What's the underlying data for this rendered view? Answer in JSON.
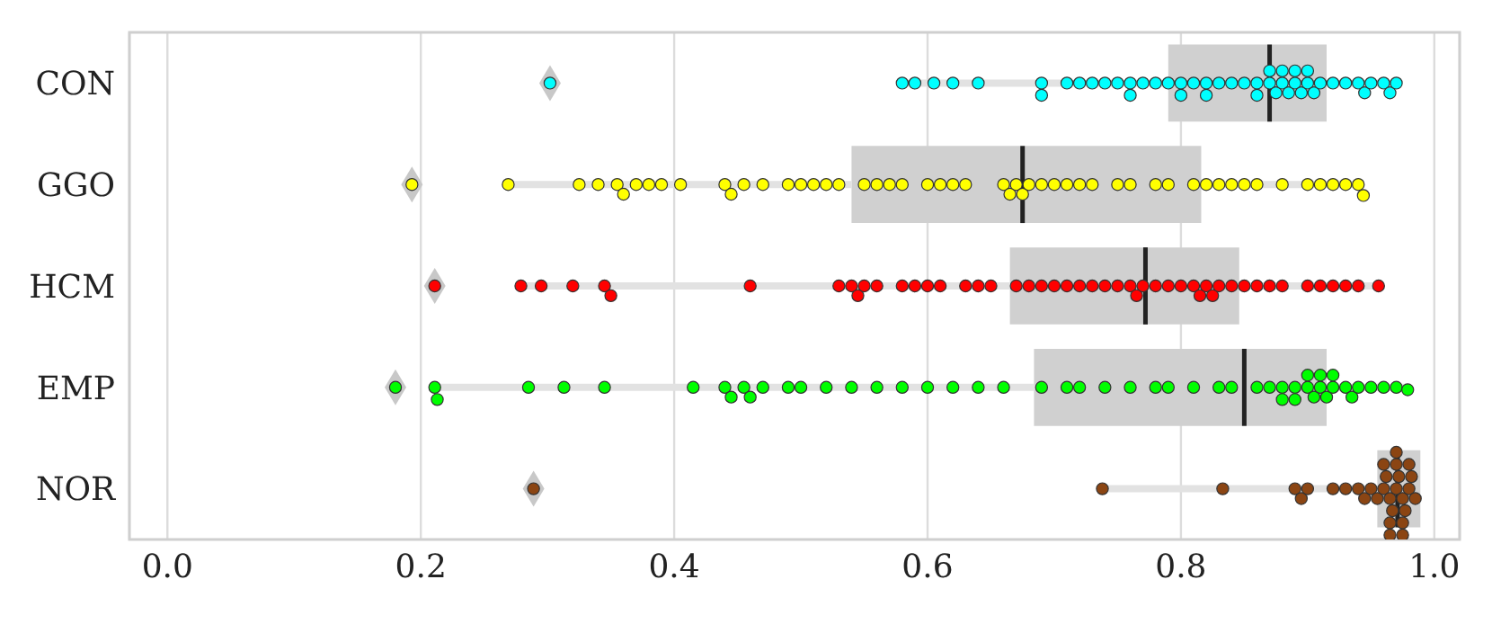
{
  "chart_data": {
    "type": "box",
    "orientation": "horizontal",
    "categories": [
      "CON",
      "GGO",
      "HCM",
      "EMP",
      "NOR"
    ],
    "xlim": [
      -0.03,
      1.02
    ],
    "xticks": [
      {
        "value": 0,
        "label": "0.0"
      },
      {
        "value": 0.2,
        "label": "0.2"
      },
      {
        "value": 0.4,
        "label": "0.4"
      },
      {
        "value": 0.6,
        "label": "0.6"
      },
      {
        "value": 0.8,
        "label": "0.8"
      },
      {
        "value": 1,
        "label": "1.0"
      }
    ],
    "grid": "x",
    "legend": false,
    "series": [
      {
        "type": "box",
        "color": "#d0d0d0",
        "boxes": [
          {
            "low": 0.58,
            "q1": 0.79,
            "median": 0.87,
            "q3": 0.915,
            "high": 0.972,
            "outliers": [
              0.302
            ]
          },
          {
            "low": 0.269,
            "q1": 0.54,
            "median": 0.675,
            "q3": 0.816,
            "high": 0.944,
            "outliers": [
              0.193
            ]
          },
          {
            "low": 0.279,
            "q1": 0.665,
            "median": 0.772,
            "q3": 0.846,
            "high": 0.956,
            "outliers": [
              0.211
            ]
          },
          {
            "low": 0.211,
            "q1": 0.684,
            "median": 0.85,
            "q3": 0.915,
            "high": 0.979,
            "outliers": [
              0.18
            ]
          },
          {
            "low": 0.738,
            "q1": 0.955,
            "median": 0.971,
            "q3": 0.989,
            "high": 0.989,
            "outliers": [
              0.289
            ]
          }
        ]
      },
      {
        "type": "scatter",
        "color": "#00ffff",
        "x": [
          "CON",
          "CON",
          "CON",
          "CON",
          "CON",
          "CON",
          "CON",
          "CON",
          "CON",
          "CON",
          "CON",
          "CON",
          "CON",
          "CON",
          "CON",
          "CON",
          "CON",
          "CON",
          "CON",
          "CON",
          "CON",
          "CON",
          "CON",
          "CON",
          "CON",
          "CON",
          "CON",
          "CON",
          "CON",
          "CON",
          "CON",
          "CON",
          "CON",
          "CON",
          "CON",
          "CON",
          "CON",
          "CON",
          "CON",
          "CON",
          "CON",
          "CON",
          "CON",
          "CON",
          "CON",
          "CON",
          "CON",
          "CON"
        ],
        "values": [
          0.58,
          0.59,
          0.605,
          0.62,
          0.64,
          0.69,
          0.69,
          0.71,
          0.72,
          0.73,
          0.74,
          0.75,
          0.76,
          0.77,
          0.78,
          0.79,
          0.8,
          0.81,
          0.82,
          0.83,
          0.84,
          0.85,
          0.86,
          0.87,
          0.875,
          0.88,
          0.885,
          0.89,
          0.895,
          0.9,
          0.905,
          0.91,
          0.92,
          0.93,
          0.94,
          0.945,
          0.95,
          0.96,
          0.965,
          0.97,
          0.88,
          0.89,
          0.9,
          0.87,
          0.86,
          0.76,
          0.8,
          0.82
        ]
      },
      {
        "type": "scatter",
        "color": "#ffff00",
        "x": [
          "GGO",
          "GGO",
          "GGO",
          "GGO",
          "GGO",
          "GGO",
          "GGO",
          "GGO",
          "GGO",
          "GGO",
          "GGO",
          "GGO",
          "GGO",
          "GGO",
          "GGO",
          "GGO",
          "GGO",
          "GGO",
          "GGO",
          "GGO",
          "GGO",
          "GGO",
          "GGO",
          "GGO",
          "GGO",
          "GGO",
          "GGO",
          "GGO",
          "GGO",
          "GGO",
          "GGO",
          "GGO",
          "GGO",
          "GGO",
          "GGO",
          "GGO",
          "GGO",
          "GGO",
          "GGO",
          "GGO",
          "GGO",
          "GGO",
          "GGO",
          "GGO",
          "GGO",
          "GGO",
          "GGO",
          "GGO",
          "GGO",
          "GGO",
          "GGO",
          "GGO",
          "GGO"
        ],
        "values": [
          0.269,
          0.325,
          0.34,
          0.355,
          0.36,
          0.37,
          0.38,
          0.39,
          0.405,
          0.44,
          0.445,
          0.455,
          0.47,
          0.49,
          0.5,
          0.51,
          0.52,
          0.53,
          0.55,
          0.56,
          0.57,
          0.58,
          0.6,
          0.61,
          0.62,
          0.63,
          0.66,
          0.665,
          0.67,
          0.675,
          0.68,
          0.69,
          0.7,
          0.71,
          0.72,
          0.73,
          0.75,
          0.76,
          0.78,
          0.79,
          0.81,
          0.82,
          0.83,
          0.84,
          0.85,
          0.86,
          0.88,
          0.9,
          0.91,
          0.92,
          0.93,
          0.94,
          0.944
        ]
      },
      {
        "type": "scatter",
        "color": "#ff0000",
        "x": [
          "HCM",
          "HCM",
          "HCM",
          "HCM",
          "HCM",
          "HCM",
          "HCM",
          "HCM",
          "HCM",
          "HCM",
          "HCM",
          "HCM",
          "HCM",
          "HCM",
          "HCM",
          "HCM",
          "HCM",
          "HCM",
          "HCM",
          "HCM",
          "HCM",
          "HCM",
          "HCM",
          "HCM",
          "HCM",
          "HCM",
          "HCM",
          "HCM",
          "HCM",
          "HCM",
          "HCM",
          "HCM",
          "HCM",
          "HCM",
          "HCM",
          "HCM",
          "HCM",
          "HCM",
          "HCM",
          "HCM",
          "HCM",
          "HCM",
          "HCM",
          "HCM",
          "HCM",
          "HCM",
          "HCM",
          "HCM",
          "HCM"
        ],
        "values": [
          0.279,
          0.295,
          0.32,
          0.345,
          0.35,
          0.46,
          0.53,
          0.54,
          0.545,
          0.55,
          0.56,
          0.58,
          0.59,
          0.6,
          0.61,
          0.63,
          0.64,
          0.65,
          0.67,
          0.68,
          0.69,
          0.7,
          0.71,
          0.72,
          0.73,
          0.74,
          0.75,
          0.76,
          0.765,
          0.77,
          0.78,
          0.79,
          0.8,
          0.81,
          0.815,
          0.82,
          0.825,
          0.83,
          0.84,
          0.85,
          0.86,
          0.87,
          0.88,
          0.9,
          0.91,
          0.92,
          0.93,
          0.94,
          0.956
        ]
      },
      {
        "type": "scatter",
        "color": "#00ff00",
        "x": [
          "EMP",
          "EMP",
          "EMP",
          "EMP",
          "EMP",
          "EMP",
          "EMP",
          "EMP",
          "EMP",
          "EMP",
          "EMP",
          "EMP",
          "EMP",
          "EMP",
          "EMP",
          "EMP",
          "EMP",
          "EMP",
          "EMP",
          "EMP",
          "EMP",
          "EMP",
          "EMP",
          "EMP",
          "EMP",
          "EMP",
          "EMP",
          "EMP",
          "EMP",
          "EMP",
          "EMP",
          "EMP",
          "EMP",
          "EMP",
          "EMP",
          "EMP",
          "EMP",
          "EMP",
          "EMP",
          "EMP",
          "EMP",
          "EMP",
          "EMP",
          "EMP",
          "EMP",
          "EMP",
          "EMP",
          "EMP",
          "EMP",
          "EMP",
          "EMP",
          "EMP"
        ],
        "values": [
          0.211,
          0.213,
          0.285,
          0.313,
          0.345,
          0.415,
          0.44,
          0.445,
          0.455,
          0.46,
          0.47,
          0.49,
          0.5,
          0.52,
          0.54,
          0.56,
          0.58,
          0.6,
          0.62,
          0.64,
          0.66,
          0.69,
          0.71,
          0.72,
          0.74,
          0.76,
          0.78,
          0.79,
          0.81,
          0.83,
          0.84,
          0.86,
          0.87,
          0.88,
          0.89,
          0.9,
          0.905,
          0.91,
          0.915,
          0.92,
          0.93,
          0.935,
          0.94,
          0.95,
          0.96,
          0.97,
          0.979,
          0.88,
          0.89,
          0.9,
          0.91,
          0.92
        ]
      },
      {
        "type": "scatter",
        "color": "#8b4513",
        "x": [
          "NOR",
          "NOR",
          "NOR",
          "NOR",
          "NOR",
          "NOR",
          "NOR",
          "NOR",
          "NOR",
          "NOR",
          "NOR",
          "NOR",
          "NOR",
          "NOR",
          "NOR",
          "NOR",
          "NOR",
          "NOR",
          "NOR",
          "NOR",
          "NOR",
          "NOR",
          "NOR",
          "NOR",
          "NOR",
          "NOR",
          "NOR",
          "NOR",
          "NOR",
          "NOR"
        ],
        "values": [
          0.738,
          0.833,
          0.89,
          0.895,
          0.9,
          0.92,
          0.93,
          0.94,
          0.945,
          0.95,
          0.955,
          0.96,
          0.962,
          0.965,
          0.967,
          0.97,
          0.972,
          0.975,
          0.977,
          0.98,
          0.982,
          0.985,
          0.96,
          0.965,
          0.97,
          0.975,
          0.98,
          0.97,
          0.965,
          0.975
        ]
      }
    ]
  }
}
